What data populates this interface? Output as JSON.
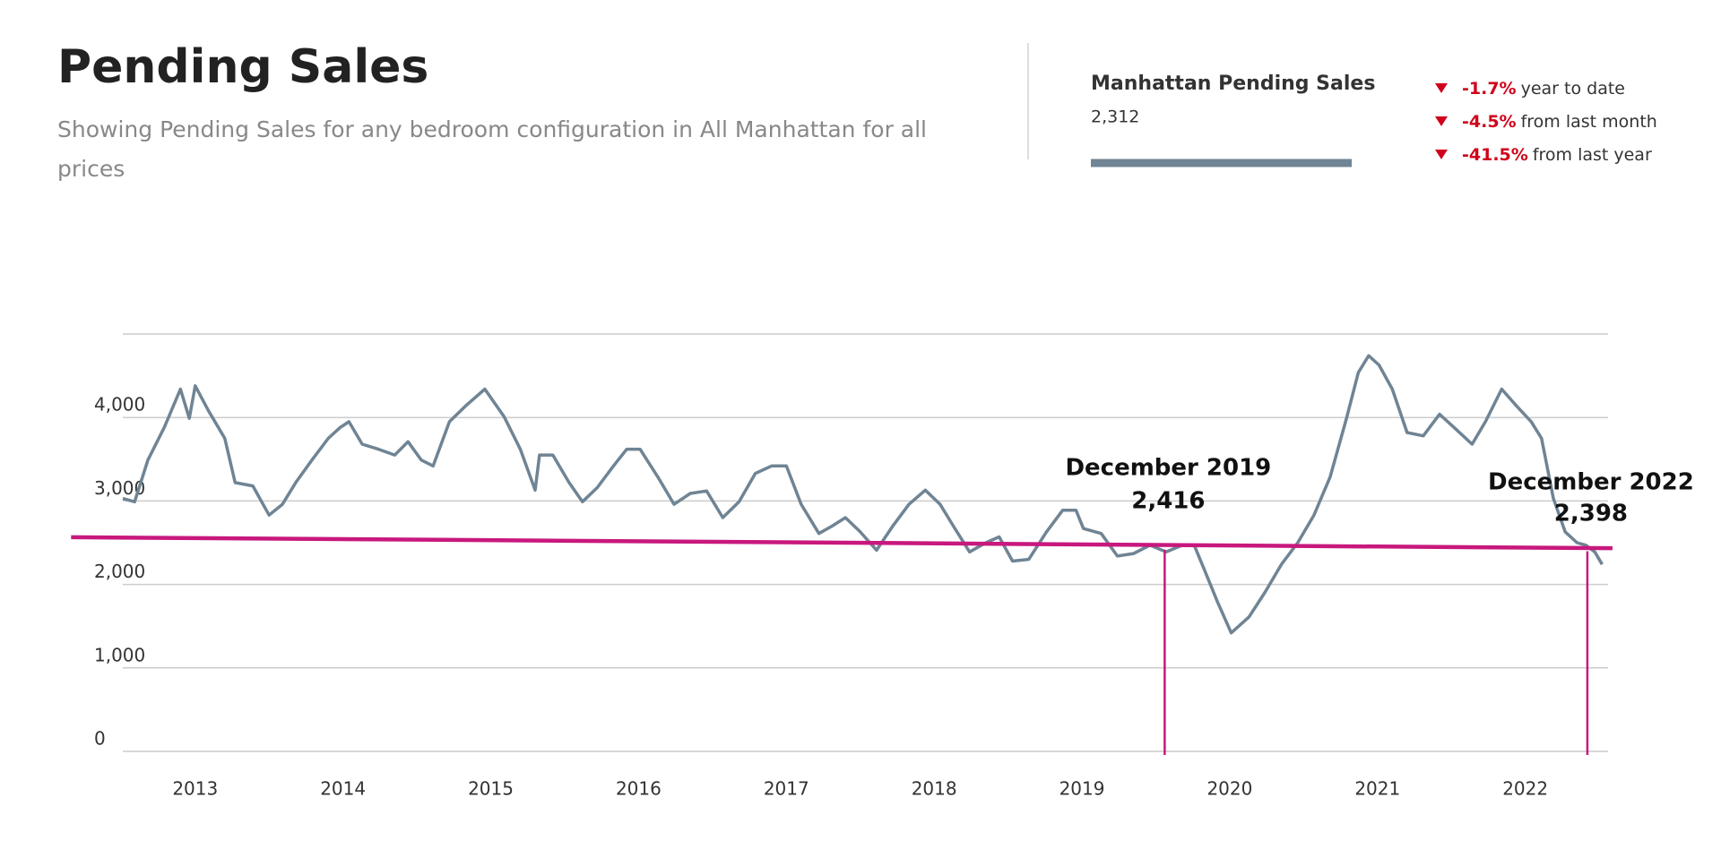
{
  "header": {
    "title": "Pending Sales",
    "subtitle": [
      "Showing Pending Sales for any bedroom configuration in All Manhattan for all",
      "prices"
    ]
  },
  "summary": {
    "value": "2,312",
    "changes": [
      {
        "value": "-1.7%",
        "text": "year to date"
      },
      {
        "value": "-4.5%",
        "text": "from last month"
      },
      {
        "value": "-41.5%",
        "text": "from last year"
      }
    ]
  },
  "chart_data": {
    "type": "line",
    "x": [
      2012.51,
      2012.59,
      2012.68,
      2012.79,
      2012.9,
      2012.96,
      2013.0,
      2013.09,
      2013.2,
      2013.27,
      2013.39,
      2013.5,
      2013.59,
      2013.68,
      2013.79,
      2013.9,
      2013.98,
      2014.04,
      2014.13,
      2014.24,
      2014.35,
      2014.44,
      2014.53,
      2014.61,
      2014.72,
      2014.83,
      2014.96,
      2015.09,
      2015.2,
      2015.3,
      2015.33,
      2015.42,
      2015.53,
      2015.62,
      2015.72,
      2015.83,
      2015.92,
      2016.01,
      2016.13,
      2016.24,
      2016.35,
      2016.46,
      2016.57,
      2016.68,
      2016.79,
      2016.9,
      2017.0,
      2017.1,
      2017.22,
      2017.31,
      2017.4,
      2017.5,
      2017.61,
      2017.72,
      2017.83,
      2017.94,
      2018.04,
      2018.13,
      2018.24,
      2018.35,
      2018.44,
      2018.53,
      2018.64,
      2018.76,
      2018.87,
      2018.96,
      2019.01,
      2019.13,
      2019.24,
      2019.35,
      2019.46,
      2019.57,
      2019.68,
      2019.76,
      2019.83,
      2019.92,
      2020.01,
      2020.13,
      2020.24,
      2020.35,
      2020.46,
      2020.57,
      2020.68,
      2020.79,
      2020.87,
      2020.94,
      2021.01,
      2021.1,
      2021.2,
      2021.31,
      2021.42,
      2021.53,
      2021.64,
      2021.73,
      2021.84,
      2021.94,
      2022.04,
      2022.11,
      2022.19,
      2022.27,
      2022.35,
      2022.41,
      2022.47,
      2022.52
    ],
    "series": [
      {
        "name": "Manhattan Pending Sales",
        "color": "#6f8494",
        "values": [
          3030,
          2990,
          3490,
          3880,
          4340,
          3990,
          4380,
          4080,
          3750,
          3220,
          3180,
          2830,
          2960,
          3220,
          3490,
          3750,
          3880,
          3950,
          3680,
          3620,
          3550,
          3710,
          3490,
          3420,
          3950,
          4140,
          4340,
          4010,
          3620,
          3130,
          3550,
          3550,
          3220,
          2990,
          3160,
          3420,
          3620,
          3620,
          3290,
          2960,
          3090,
          3120,
          2800,
          2990,
          3330,
          3420,
          3420,
          2960,
          2610,
          2700,
          2800,
          2630,
          2410,
          2700,
          2960,
          3130,
          2960,
          2700,
          2390,
          2500,
          2570,
          2280,
          2300,
          2630,
          2890,
          2890,
          2670,
          2610,
          2340,
          2370,
          2470,
          2390,
          2470,
          2470,
          2170,
          1780,
          1420,
          1610,
          1910,
          2240,
          2500,
          2830,
          3290,
          3990,
          4540,
          4740,
          4630,
          4340,
          3820,
          3780,
          4040,
          3860,
          3680,
          3950,
          4340,
          4140,
          3950,
          3750,
          3030,
          2630,
          2500,
          2470,
          2390,
          2240
        ]
      }
    ],
    "trend": {
      "x": [
        2012.16,
        2022.59
      ],
      "values": [
        2566,
        2434
      ],
      "color": "#c8187d"
    },
    "annotations": [
      {
        "label": "December 2019",
        "x": 2019.56,
        "value": 2416,
        "value_label": "2,416"
      },
      {
        "label": "December 2022",
        "x": 2022.42,
        "value": 2398,
        "value_label": "2,398"
      }
    ],
    "xlim": [
      2012.51,
      2022.56
    ],
    "ylim": [
      0,
      5000
    ],
    "xticks": [
      2013,
      2014,
      2015,
      2016,
      2017,
      2018,
      2019,
      2020,
      2021,
      2022
    ],
    "yticks": [
      0,
      {
        "value": 1000,
        "label": "1,000"
      },
      {
        "value": 2000,
        "label": "2,000"
      },
      {
        "value": 3000,
        "label": "3,000"
      },
      {
        "value": 4000,
        "label": "4,000"
      }
    ],
    "grid": true
  }
}
